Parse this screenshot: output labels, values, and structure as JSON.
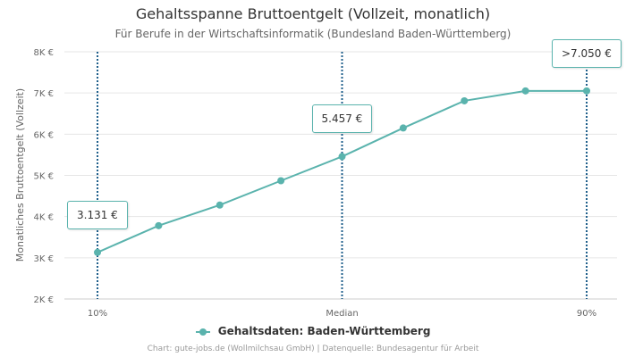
{
  "header": {
    "title": "Gehaltsspanne Bruttoentgelt (Vollzeit, monatlich)",
    "subtitle": "Für Berufe in der Wirtschaftsinformatik (Bundesland Baden-Württemberg)"
  },
  "legend": {
    "label": "Gehaltsdaten: Baden-Württemberg"
  },
  "footer": {
    "text": "Chart: gute-jobs.de (Wollmilchsau GmbH) | Datenquelle: Bundesagentur für Arbeit"
  },
  "colors": {
    "series": "#5ab3ad",
    "marker_line": "#1f5f8b",
    "grid": "#e6e6e6"
  },
  "chart_data": {
    "type": "line",
    "title": "Gehaltsspanne Bruttoentgelt (Vollzeit, monatlich)",
    "subtitle": "Für Berufe in der Wirtschaftsinformatik (Bundesland Baden-Württemberg)",
    "ylabel": "Monatliches Bruttoentgelt (Vollzeit)",
    "xlabel": "",
    "ylim": [
      2000,
      8000
    ],
    "y_ticks": [
      2000,
      3000,
      4000,
      5000,
      6000,
      7000,
      8000
    ],
    "y_tick_labels": [
      "2K €",
      "3K €",
      "4K €",
      "5K €",
      "6K €",
      "7K €",
      "8K €"
    ],
    "x_percentiles": [
      10,
      20,
      30,
      40,
      50,
      60,
      70,
      80,
      90
    ],
    "x_tick_labels": [
      {
        "percentile": 10,
        "label": "10%"
      },
      {
        "percentile": 50,
        "label": "Median"
      },
      {
        "percentile": 90,
        "label": "90%"
      }
    ],
    "grid": true,
    "legend_position": "bottom-center",
    "series": [
      {
        "name": "Gehaltsdaten: Baden-Württemberg",
        "values": [
          3131,
          3780,
          4280,
          4870,
          5457,
          6150,
          6810,
          7050,
          7050
        ]
      }
    ],
    "annotations": [
      {
        "percentile": 10,
        "value": 3131,
        "label": "3.131 €"
      },
      {
        "percentile": 50,
        "value": 5457,
        "label": "5.457 €"
      },
      {
        "percentile": 90,
        "value": 7050,
        "label": ">7.050 €"
      }
    ]
  }
}
